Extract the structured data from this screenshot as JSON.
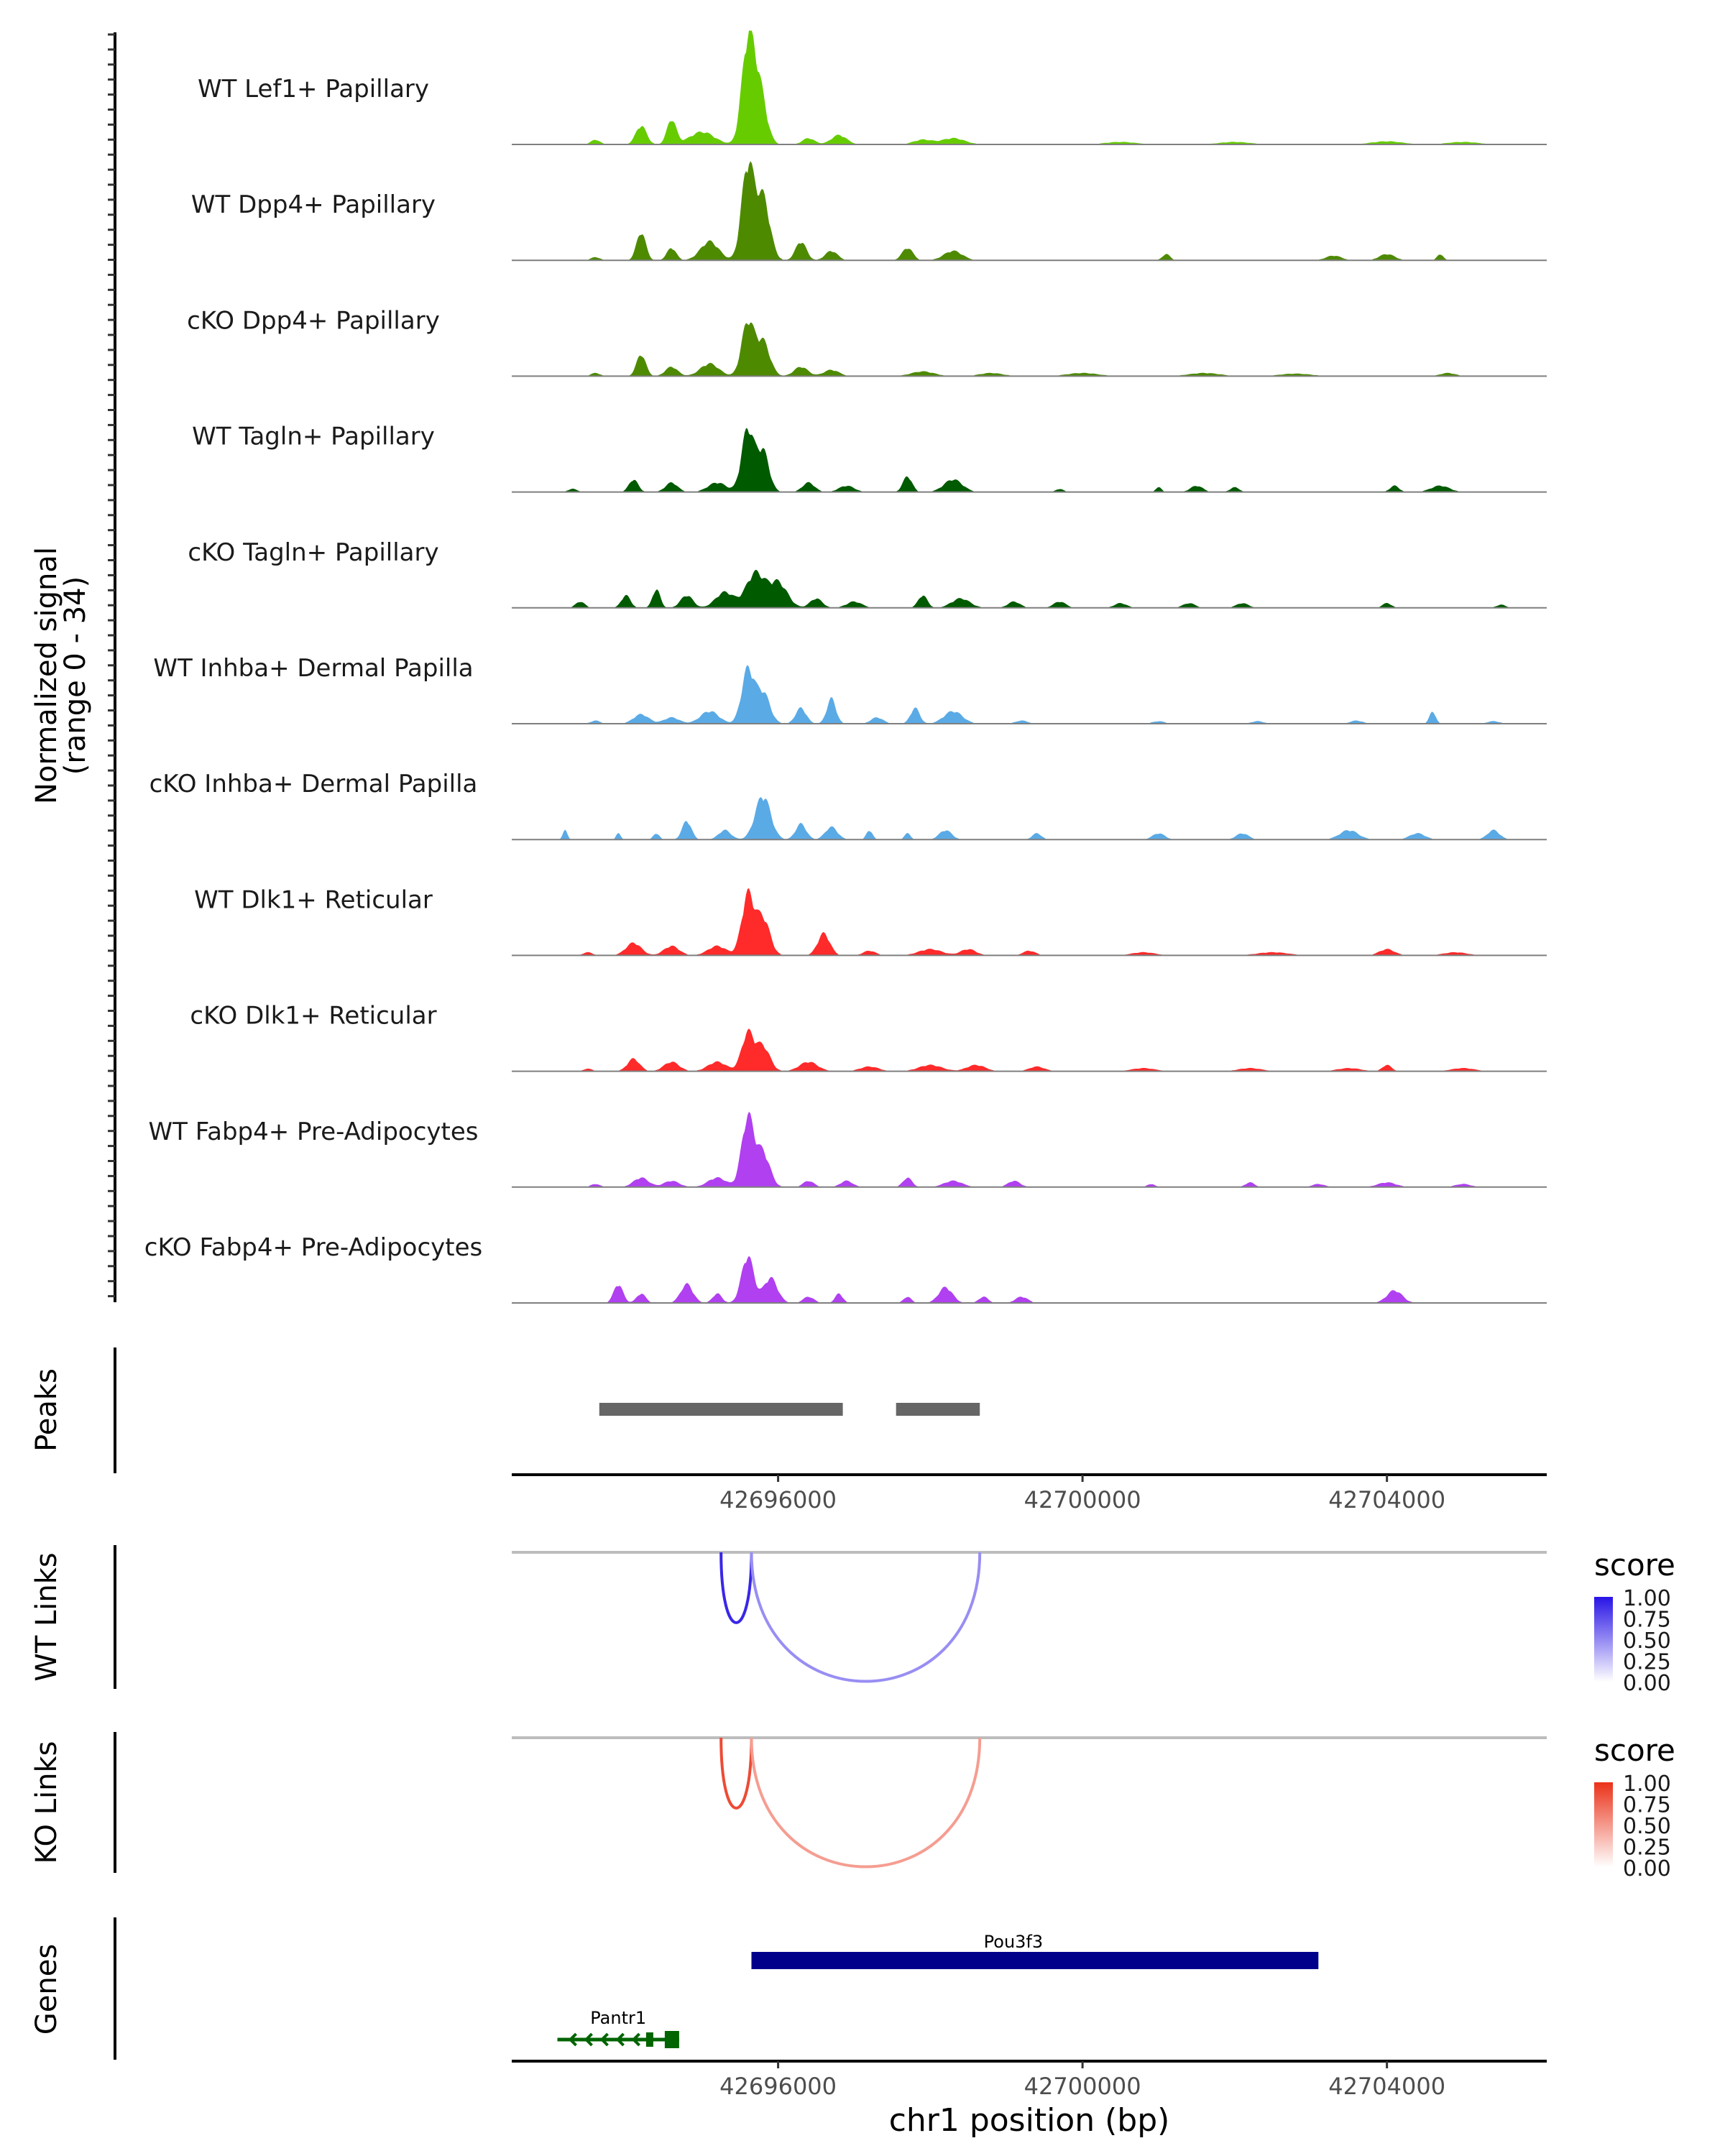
{
  "chart_data": {
    "type": "area",
    "title": "",
    "region": {
      "chromosome": "chr1",
      "start": 42692500,
      "end": 42706100
    },
    "xlabel": "chr1 position (bp)",
    "x_ticks": [
      42696000,
      42700000,
      42704000
    ],
    "x_tick_labels": [
      "42696000",
      "42700000",
      "42704000"
    ],
    "coverage": {
      "ylabel_line1": "Normalized signal",
      "ylabel_line2": "(range 0 - 34)",
      "ylim": [
        0,
        34
      ],
      "tracks": [
        {
          "name": "WT Lef1+ Papillary",
          "color": "#66cc00",
          "peaks": [
            [
              42693600,
              1.5,
              60
            ],
            [
              42694200,
              6,
              70
            ],
            [
              42694600,
              8,
              60
            ],
            [
              42695000,
              4,
              160
            ],
            [
              42695600,
              31,
              80
            ],
            [
              42695750,
              18,
              90
            ],
            [
              42696400,
              2,
              80
            ],
            [
              42696800,
              3,
              100
            ],
            [
              42697900,
              1.5,
              120
            ],
            [
              42698300,
              2,
              150
            ],
            [
              42700500,
              0.8,
              200
            ],
            [
              42702000,
              0.8,
              200
            ],
            [
              42704000,
              1,
              200
            ],
            [
              42705000,
              0.8,
              200
            ]
          ]
        },
        {
          "name": "WT Dpp4+ Papillary",
          "color": "#4d8a00",
          "peaks": [
            [
              42693600,
              1,
              60
            ],
            [
              42694200,
              9,
              60
            ],
            [
              42694600,
              4,
              60
            ],
            [
              42695100,
              6,
              120
            ],
            [
              42695600,
              30,
              80
            ],
            [
              42695800,
              20,
              90
            ],
            [
              42696300,
              6,
              70
            ],
            [
              42696700,
              3,
              80
            ],
            [
              42697700,
              4,
              70
            ],
            [
              42698300,
              3,
              120
            ],
            [
              42701100,
              2,
              50
            ],
            [
              42703300,
              1.5,
              100
            ],
            [
              42704000,
              2,
              100
            ],
            [
              42704700,
              2,
              40
            ]
          ]
        },
        {
          "name": "cKO Dpp4+ Papillary",
          "color": "#4d8a00",
          "peaks": [
            [
              42693600,
              1,
              60
            ],
            [
              42694200,
              7,
              60
            ],
            [
              42694600,
              3,
              80
            ],
            [
              42695100,
              4,
              120
            ],
            [
              42695600,
              17,
              80
            ],
            [
              42695800,
              11,
              90
            ],
            [
              42696300,
              3,
              90
            ],
            [
              42696700,
              2,
              100
            ],
            [
              42697900,
              1.5,
              150
            ],
            [
              42698800,
              1,
              150
            ],
            [
              42700000,
              1,
              200
            ],
            [
              42701600,
              1,
              200
            ],
            [
              42702800,
              0.8,
              200
            ],
            [
              42704800,
              1,
              100
            ]
          ]
        },
        {
          "name": "WT Tagln+ Papillary",
          "color": "#005a00",
          "peaks": [
            [
              42693300,
              1,
              60
            ],
            [
              42694100,
              4,
              60
            ],
            [
              42694600,
              3,
              80
            ],
            [
              42695200,
              3,
              120
            ],
            [
              42695600,
              20,
              80
            ],
            [
              42695800,
              13,
              80
            ],
            [
              42696400,
              3,
              80
            ],
            [
              42696900,
              2,
              100
            ],
            [
              42697700,
              5,
              60
            ],
            [
              42698300,
              4,
              120
            ],
            [
              42699700,
              1,
              50
            ],
            [
              42701000,
              1.5,
              40
            ],
            [
              42701500,
              2,
              80
            ],
            [
              42702000,
              1.5,
              60
            ],
            [
              42704100,
              2,
              60
            ],
            [
              42704700,
              2,
              120
            ]
          ]
        },
        {
          "name": "cKO Tagln+ Papillary",
          "color": "#005a00",
          "peaks": [
            [
              42693400,
              2,
              60
            ],
            [
              42694000,
              4,
              60
            ],
            [
              42694400,
              6,
              50
            ],
            [
              42694800,
              4,
              80
            ],
            [
              42695300,
              5,
              120
            ],
            [
              42695700,
              11,
              120
            ],
            [
              42696000,
              8,
              120
            ],
            [
              42696500,
              3,
              80
            ],
            [
              42697000,
              2,
              100
            ],
            [
              42697900,
              4,
              60
            ],
            [
              42698400,
              3,
              120
            ],
            [
              42699100,
              2,
              80
            ],
            [
              42699700,
              2,
              80
            ],
            [
              42700500,
              1.5,
              80
            ],
            [
              42701400,
              1.5,
              80
            ],
            [
              42702100,
              1.5,
              80
            ],
            [
              42704000,
              1.5,
              60
            ],
            [
              42705500,
              1,
              60
            ]
          ]
        },
        {
          "name": "WT Inhba+ Dermal Papilla",
          "color": "#5aaae6",
          "peaks": [
            [
              42693600,
              1,
              60
            ],
            [
              42694200,
              3,
              100
            ],
            [
              42694600,
              2,
              100
            ],
            [
              42695100,
              4,
              120
            ],
            [
              42695600,
              17,
              80
            ],
            [
              42695800,
              10,
              90
            ],
            [
              42696300,
              5,
              70
            ],
            [
              42696700,
              8,
              60
            ],
            [
              42697300,
              2,
              80
            ],
            [
              42697800,
              5,
              60
            ],
            [
              42698300,
              4,
              120
            ],
            [
              42699200,
              1,
              80
            ],
            [
              42701000,
              0.8,
              80
            ],
            [
              42702300,
              0.8,
              80
            ],
            [
              42703600,
              1,
              80
            ],
            [
              42704600,
              4,
              40
            ],
            [
              42705400,
              0.8,
              80
            ]
          ]
        },
        {
          "name": "cKO Inhba+ Dermal Papilla",
          "color": "#5aaae6",
          "peaks": [
            [
              42693200,
              3,
              30
            ],
            [
              42693900,
              2,
              30
            ],
            [
              42694400,
              2,
              40
            ],
            [
              42694800,
              6,
              60
            ],
            [
              42695300,
              3,
              80
            ],
            [
              42695800,
              14,
              100
            ],
            [
              42696300,
              5,
              70
            ],
            [
              42696700,
              4,
              80
            ],
            [
              42697200,
              3,
              40
            ],
            [
              42697700,
              2,
              40
            ],
            [
              42698200,
              3,
              80
            ],
            [
              42699400,
              2,
              60
            ],
            [
              42701000,
              2,
              80
            ],
            [
              42702100,
              2,
              80
            ],
            [
              42703500,
              3,
              120
            ],
            [
              42704400,
              2,
              100
            ],
            [
              42705400,
              3,
              80
            ]
          ]
        },
        {
          "name": "WT Dlk1+ Reticular",
          "color": "#ff2a2a",
          "peaks": [
            [
              42693500,
              1,
              60
            ],
            [
              42694100,
              4,
              100
            ],
            [
              42694600,
              3,
              100
            ],
            [
              42695200,
              3,
              120
            ],
            [
              42695600,
              19,
              80
            ],
            [
              42695800,
              12,
              90
            ],
            [
              42696600,
              7,
              80
            ],
            [
              42697200,
              1.5,
              80
            ],
            [
              42698000,
              2,
              150
            ],
            [
              42698500,
              2,
              100
            ],
            [
              42699300,
              1.5,
              80
            ],
            [
              42700800,
              1,
              150
            ],
            [
              42702500,
              1,
              200
            ],
            [
              42704000,
              2,
              100
            ],
            [
              42704900,
              1,
              150
            ]
          ]
        },
        {
          "name": "cKO Dlk1+ Reticular",
          "color": "#ff2a2a",
          "peaks": [
            [
              42693500,
              0.8,
              60
            ],
            [
              42694100,
              4,
              80
            ],
            [
              42694600,
              3,
              100
            ],
            [
              42695200,
              3,
              120
            ],
            [
              42695600,
              12,
              80
            ],
            [
              42695800,
              8,
              90
            ],
            [
              42696400,
              3,
              120
            ],
            [
              42697200,
              1.5,
              120
            ],
            [
              42698000,
              2,
              150
            ],
            [
              42698600,
              2,
              120
            ],
            [
              42699400,
              1.5,
              100
            ],
            [
              42700800,
              1,
              150
            ],
            [
              42702200,
              1,
              150
            ],
            [
              42703500,
              1,
              150
            ],
            [
              42704000,
              2,
              60
            ],
            [
              42705000,
              1,
              150
            ]
          ]
        },
        {
          "name": "WT Fabp4+ Pre-Adipocytes",
          "color": "#b040f0",
          "peaks": [
            [
              42693600,
              1,
              60
            ],
            [
              42694200,
              3,
              100
            ],
            [
              42694600,
              2,
              100
            ],
            [
              42695200,
              3,
              120
            ],
            [
              42695600,
              22,
              80
            ],
            [
              42695800,
              11,
              90
            ],
            [
              42696400,
              2,
              70
            ],
            [
              42696900,
              2,
              80
            ],
            [
              42697700,
              3,
              60
            ],
            [
              42698300,
              2,
              120
            ],
            [
              42699100,
              2,
              80
            ],
            [
              42700900,
              1,
              50
            ],
            [
              42702200,
              1.5,
              60
            ],
            [
              42703100,
              1,
              80
            ],
            [
              42704000,
              1.5,
              120
            ],
            [
              42705000,
              1,
              100
            ]
          ]
        },
        {
          "name": "cKO Fabp4+ Pre-Adipocytes",
          "color": "#b040f0",
          "peaks": [
            [
              42693900,
              6,
              60
            ],
            [
              42694200,
              3,
              60
            ],
            [
              42694800,
              6,
              80
            ],
            [
              42695200,
              3,
              60
            ],
            [
              42695600,
              15,
              80
            ],
            [
              42695900,
              8,
              90
            ],
            [
              42696400,
              2,
              70
            ],
            [
              42696800,
              3,
              50
            ],
            [
              42697700,
              2,
              50
            ],
            [
              42698200,
              5,
              90
            ],
            [
              42698700,
              2,
              60
            ],
            [
              42699200,
              2,
              80
            ],
            [
              42704100,
              4,
              100
            ]
          ]
        }
      ]
    },
    "peaks_track": {
      "label": "Peaks",
      "color": "#666666",
      "ranges": [
        [
          42693650,
          42696850
        ],
        [
          42697550,
          42698650
        ]
      ]
    },
    "link_tracks": [
      {
        "label": "WT Links",
        "legend_title": "score",
        "color_low": "#ffffff",
        "color_high": "#2814e6",
        "legend_values": [
          "1.00",
          "0.75",
          "0.50",
          "0.25",
          "0.00"
        ],
        "links": [
          {
            "start": 42695250,
            "end": 42695650,
            "score": 0.9
          },
          {
            "start": 42695650,
            "end": 42698650,
            "score": 0.35
          }
        ]
      },
      {
        "label": "KO Links",
        "legend_title": "score",
        "color_low": "#ffffff",
        "color_high": "#eb3219",
        "legend_values": [
          "1.00",
          "0.75",
          "0.50",
          "0.25",
          "0.00"
        ],
        "links": [
          {
            "start": 42695250,
            "end": 42695650,
            "score": 0.85
          },
          {
            "start": 42695650,
            "end": 42698650,
            "score": 0.35
          }
        ]
      }
    ],
    "genes_track": {
      "label": "Genes",
      "genes": [
        {
          "name": "Pou3f3",
          "start": 42695650,
          "end": 42703100,
          "strand": "+",
          "color": "#00008b"
        },
        {
          "name": "Pantr1",
          "start": 42693100,
          "end": 42694700,
          "strand": "-",
          "color": "#006400"
        }
      ]
    }
  }
}
